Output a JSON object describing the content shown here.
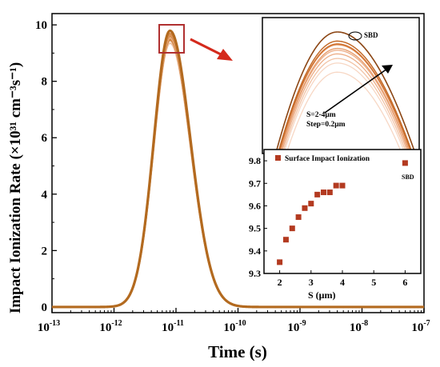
{
  "colors": {
    "main_curve": "#b36a1f",
    "curve_light": "#f0c4a6",
    "curve_outer": "#8b4513",
    "highlight_box": "#b03030",
    "arrow": "#d42a1c",
    "marker": "#b33a20"
  },
  "chart_data": [
    {
      "id": "main",
      "type": "line",
      "xlabel": "Time (s)",
      "ylabel": "Impact Ionization Rate (×10³¹ cm⁻³s⁻¹)",
      "xscale": "log",
      "xlim": [
        1e-13,
        1e-07
      ],
      "ylim": [
        -0.2,
        10.4
      ],
      "xticks": [
        1e-13,
        1e-12,
        1e-11,
        1e-10,
        1e-09,
        1e-08,
        1e-07
      ],
      "xtick_labels": [
        {
          "base": "10",
          "exp": "-13"
        },
        {
          "base": "10",
          "exp": "-12"
        },
        {
          "base": "10",
          "exp": "-11"
        },
        {
          "base": "10",
          "exp": "-10"
        },
        {
          "base": "10",
          "exp": "-9"
        },
        {
          "base": "10",
          "exp": "-8"
        },
        {
          "base": "10",
          "exp": "-7"
        }
      ],
      "yticks": [
        0,
        2,
        4,
        6,
        8,
        10
      ],
      "ytick_labels": [
        "0",
        "2",
        "4",
        "6",
        "8",
        "10"
      ],
      "peak_time": 8e-12,
      "series_peaks": [
        9.35,
        9.45,
        9.5,
        9.55,
        9.59,
        9.61,
        9.65,
        9.66,
        9.66,
        9.69,
        9.69,
        9.79
      ]
    },
    {
      "id": "inset_zoom",
      "type": "line",
      "annotations": {
        "sbd": "SBD",
        "range": "S=2-4μm",
        "step": "Step=0.2μm"
      }
    },
    {
      "id": "inset_scatter",
      "type": "scatter",
      "xlabel": "S (μm)",
      "xlim": [
        1.5,
        6.5
      ],
      "ylim": [
        9.3,
        9.85
      ],
      "xticks": [
        2,
        3,
        4,
        5,
        6
      ],
      "yticks": [
        9.3,
        9.4,
        9.5,
        9.6,
        9.7,
        9.8
      ],
      "ytick_labels": [
        "9.3",
        "9.4",
        "9.5",
        "9.6",
        "9.7",
        "9.8"
      ],
      "series": [
        {
          "name": "Surface Impact Ionization",
          "x": [
            2.0,
            2.2,
            2.4,
            2.6,
            2.8,
            3.0,
            3.2,
            3.4,
            3.6,
            3.8,
            4.0
          ],
          "y": [
            9.35,
            9.45,
            9.5,
            9.55,
            9.59,
            9.61,
            9.65,
            9.66,
            9.66,
            9.69,
            9.69
          ]
        },
        {
          "name": "SBD",
          "x": [
            6.0
          ],
          "y": [
            9.79
          ]
        }
      ]
    }
  ]
}
